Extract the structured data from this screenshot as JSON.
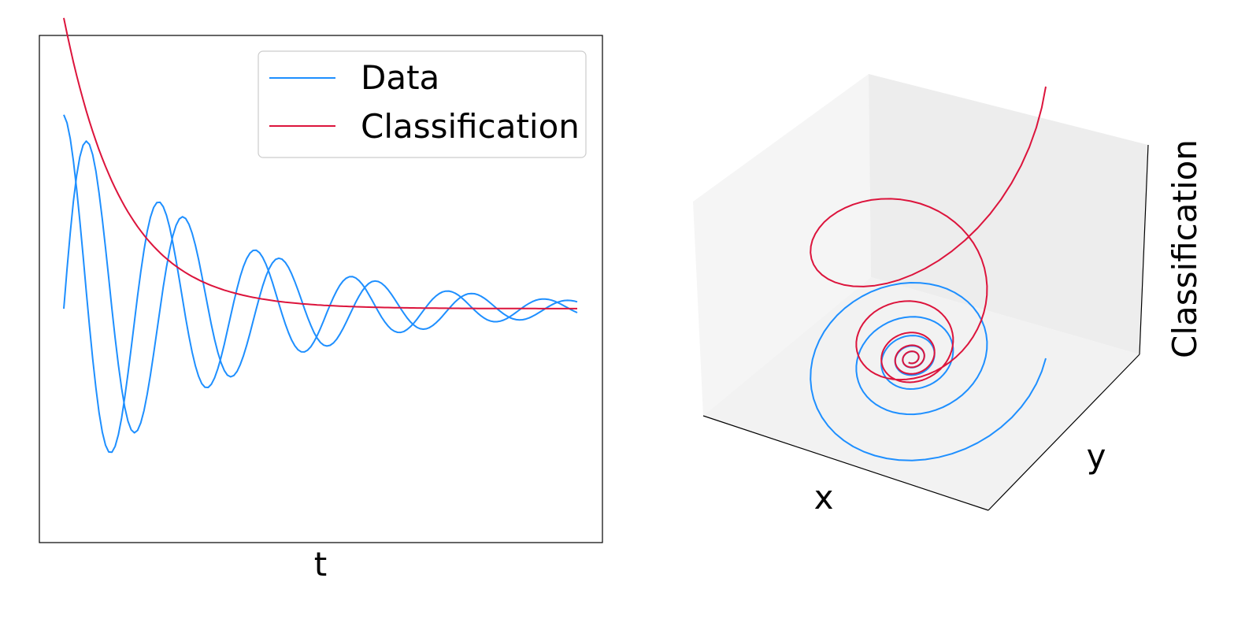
{
  "colors": {
    "data": "#1E8FFF",
    "classification": "#DC143C",
    "pane_back": "#F5F5F5",
    "pane_side": "#EDEDED",
    "pane_floor": "#F2F2F2",
    "axis_line": "#000000"
  },
  "chart_data": [
    {
      "type": "line",
      "xlabel": "t",
      "ylabel": "",
      "grid": false,
      "ticks": false,
      "xlim": [
        0,
        16
      ],
      "ylim": [
        -1.15,
        1.3
      ],
      "legend": {
        "placement": "top-right",
        "entries": [
          "Data",
          "Classification"
        ]
      },
      "series": [
        {
          "name": "Data",
          "color_key": "data",
          "model": "x(t) = e^(-0.2t)·cos(πt/1.5)",
          "x": [
            0,
            0.5,
            1,
            1.5,
            2,
            2.5,
            3,
            3.5,
            4,
            4.5,
            5,
            5.5,
            6,
            6.5,
            7,
            7.5,
            8,
            8.5,
            9,
            9.5,
            10,
            10.5,
            11,
            11.5,
            12,
            12.5,
            13,
            13.5,
            14,
            14.5,
            15,
            15.5,
            16
          ],
          "y": [
            1.0,
            -0.45,
            -0.41,
            0.74,
            -0.34,
            -0.3,
            0.55,
            -0.25,
            -0.22,
            0.41,
            -0.18,
            -0.16,
            0.3,
            -0.14,
            -0.12,
            0.22,
            -0.1,
            -0.09,
            0.17,
            -0.07,
            -0.07,
            0.12,
            -0.06,
            -0.05,
            0.09,
            -0.04,
            -0.04,
            0.07,
            -0.03,
            -0.03,
            0.05,
            -0.02,
            -0.02
          ]
        },
        {
          "name": "",
          "color_key": "data",
          "model": "y(t) = e^(-0.2t)·sin(πt/1.5)",
          "x": [
            0,
            0.5,
            1,
            1.5,
            2,
            2.5,
            3,
            3.5,
            4,
            4.5,
            5,
            5.5,
            6,
            6.5,
            7,
            7.5,
            8,
            8.5,
            9,
            9.5,
            10,
            10.5,
            11,
            11.5,
            12,
            12.5,
            13,
            13.5,
            14,
            14.5,
            15,
            15.5,
            16
          ],
          "y": [
            0.0,
            0.79,
            -0.71,
            0.0,
            0.59,
            -0.53,
            0.0,
            0.43,
            -0.39,
            0.0,
            0.32,
            -0.29,
            0.0,
            0.24,
            -0.21,
            0.0,
            0.18,
            -0.16,
            0.0,
            0.13,
            -0.12,
            0.0,
            0.1,
            -0.09,
            0.0,
            0.07,
            -0.06,
            0.0,
            0.05,
            -0.05,
            0.0,
            0.04,
            -0.03
          ]
        },
        {
          "name": "Classification",
          "color_key": "classification",
          "model": "z(t) = 1.5·e^(-0.55t)",
          "x": [
            0,
            0.5,
            1,
            1.5,
            2,
            2.5,
            3,
            3.5,
            4,
            4.5,
            5,
            5.5,
            6,
            6.5,
            7,
            7.5,
            8,
            8.5,
            9,
            9.5,
            10,
            10.5,
            11,
            11.5,
            12,
            12.5,
            13,
            13.5,
            14,
            14.5,
            15,
            15.5,
            16
          ],
          "y": [
            1.5,
            1.14,
            0.87,
            0.66,
            0.5,
            0.38,
            0.29,
            0.22,
            0.17,
            0.13,
            0.1,
            0.07,
            0.06,
            0.04,
            0.03,
            0.02,
            0.02,
            0.01,
            0.01,
            0.01,
            0.01,
            0.0,
            0.0,
            0.0,
            0.0,
            0.0,
            0.0,
            0.0,
            0.0,
            0.0,
            0.0,
            0.0,
            0.0
          ]
        }
      ]
    },
    {
      "type": "line",
      "projection": "3d",
      "xlabel": "x",
      "ylabel": "y",
      "zlabel": "Classification",
      "grid": false,
      "ticks": false,
      "series": [
        {
          "name": "Data",
          "color_key": "data",
          "description": "spiral (x(t), y(t)) lying in the floor plane z = 0"
        },
        {
          "name": "Classification",
          "color_key": "classification",
          "description": "spiral lifted to height z(t)"
        }
      ]
    }
  ]
}
